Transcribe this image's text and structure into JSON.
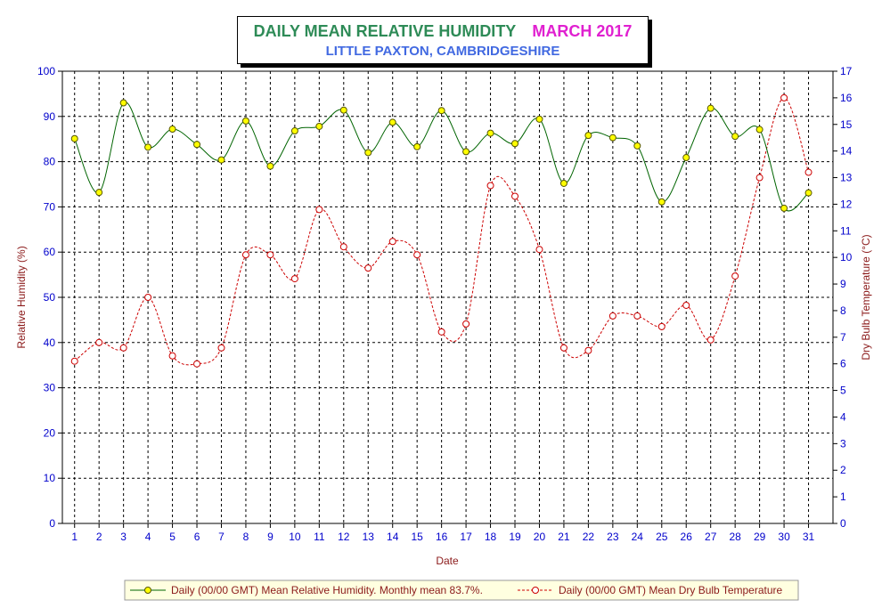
{
  "title": {
    "main": "DAILY MEAN RELATIVE HUMIDITY",
    "month": "MARCH 2017",
    "subtitle": "LITTLE PAXTON, CAMBRIDGESHIRE"
  },
  "chart_data": {
    "type": "line",
    "xlabel": "Date",
    "ylabel_left": "Relative Humidity (%)",
    "ylabel_right": "Dry Bulb Temperature (°C)",
    "ylim_left": [
      0,
      100
    ],
    "ylim_right": [
      0,
      17
    ],
    "yticks_left": [
      "0",
      "10",
      "20",
      "30",
      "40",
      "50",
      "60",
      "70",
      "80",
      "90",
      "100"
    ],
    "yticks_right": [
      "0",
      "1",
      "2",
      "3",
      "4",
      "5",
      "6",
      "7",
      "8",
      "9",
      "10",
      "11",
      "12",
      "13",
      "14",
      "15",
      "16",
      "17"
    ],
    "categories": [
      "1",
      "2",
      "3",
      "4",
      "5",
      "6",
      "7",
      "8",
      "9",
      "10",
      "11",
      "12",
      "13",
      "14",
      "15",
      "16",
      "17",
      "18",
      "19",
      "20",
      "21",
      "22",
      "23",
      "24",
      "25",
      "26",
      "27",
      "28",
      "29",
      "30",
      "31"
    ],
    "grid": true,
    "legend_position": "bottom",
    "series": [
      {
        "name": "Daily (00/00 GMT) Mean Relative Humidity. Monthly mean 83.7%.",
        "axis": "left",
        "color": "#006400",
        "marker_color": "#ffff00",
        "values": [
          85.1,
          73.2,
          93.0,
          83.2,
          87.2,
          83.8,
          80.4,
          89.0,
          79.0,
          86.8,
          87.8,
          91.4,
          82.0,
          88.7,
          83.3,
          91.3,
          82.2,
          86.3,
          84.0,
          89.4,
          75.2,
          85.8,
          85.3,
          83.5,
          71.1,
          80.9,
          91.8,
          85.6,
          87.1,
          69.7,
          73.1
        ]
      },
      {
        "name": "Daily (00/00 GMT) Mean Dry Bulb Temperature",
        "axis": "right",
        "color": "#cc0000",
        "marker_color": "#ffffff",
        "values": [
          6.1,
          6.8,
          6.6,
          8.5,
          6.3,
          6.0,
          6.6,
          10.1,
          10.1,
          9.2,
          11.8,
          10.4,
          9.6,
          10.6,
          10.1,
          7.2,
          7.5,
          12.7,
          12.3,
          10.3,
          6.6,
          6.5,
          7.8,
          7.8,
          7.4,
          8.2,
          6.9,
          9.3,
          13.0,
          16.0,
          13.2
        ]
      }
    ]
  }
}
